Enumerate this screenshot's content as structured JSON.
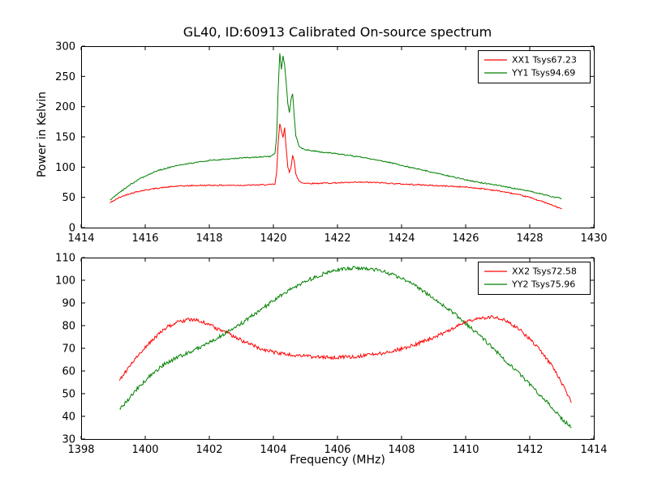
{
  "chart_data": [
    {
      "type": "line",
      "title": "GL40, ID:60913 Calibrated On-source spectrum",
      "xlabel": "",
      "ylabel": "Power in Kelvin",
      "xlim": [
        1414,
        1430
      ],
      "ylim": [
        0,
        300
      ],
      "xticks": [
        1414,
        1416,
        1418,
        1420,
        1422,
        1424,
        1426,
        1428,
        1430
      ],
      "yticks": [
        0,
        50,
        100,
        150,
        200,
        250,
        300
      ],
      "grid": false,
      "legend_position": "upper right",
      "noise_amplitude": 1.0,
      "series": [
        {
          "name": "XX1 Tsys67.23",
          "color": "#ff0000",
          "x": [
            1414.9,
            1415.0,
            1415.2,
            1415.5,
            1415.8,
            1416.1,
            1416.5,
            1417.0,
            1417.5,
            1418.0,
            1418.5,
            1419.0,
            1419.5,
            1419.9,
            1420.05,
            1420.1,
            1420.15,
            1420.2,
            1420.25,
            1420.3,
            1420.35,
            1420.4,
            1420.45,
            1420.5,
            1420.55,
            1420.6,
            1420.65,
            1420.7,
            1420.8,
            1420.9,
            1421.2,
            1421.6,
            1422.0,
            1422.4,
            1422.8,
            1423.2,
            1423.6,
            1424.0,
            1424.5,
            1425.0,
            1425.5,
            1426.0,
            1426.5,
            1427.0,
            1427.5,
            1428.0,
            1428.4,
            1428.7,
            1429.0
          ],
          "y": [
            41,
            44,
            50,
            56,
            60,
            63,
            66,
            68.5,
            69.5,
            70,
            70,
            70,
            70.5,
            71,
            72,
            90,
            140,
            172,
            160,
            150,
            165,
            130,
            100,
            92,
            100,
            120,
            110,
            88,
            77,
            74,
            73,
            73.5,
            74,
            74.5,
            75,
            74.5,
            73.5,
            72,
            71,
            69.5,
            68.5,
            67,
            64.5,
            61,
            56,
            50,
            43,
            37,
            31
          ]
        },
        {
          "name": "YY1 Tsys94.69",
          "color": "#008000",
          "x": [
            1414.9,
            1415.0,
            1415.2,
            1415.5,
            1415.8,
            1416.1,
            1416.5,
            1417.0,
            1417.5,
            1418.0,
            1418.5,
            1419.0,
            1419.5,
            1419.9,
            1420.05,
            1420.1,
            1420.15,
            1420.2,
            1420.25,
            1420.3,
            1420.35,
            1420.4,
            1420.45,
            1420.5,
            1420.55,
            1420.6,
            1420.65,
            1420.7,
            1420.8,
            1420.9,
            1421.2,
            1421.6,
            1422.0,
            1422.4,
            1422.8,
            1423.2,
            1423.6,
            1424.0,
            1424.5,
            1425.0,
            1425.5,
            1426.0,
            1426.5,
            1427.0,
            1427.5,
            1428.0,
            1428.4,
            1428.7,
            1429.0
          ],
          "y": [
            45,
            50,
            58,
            70,
            80,
            88,
            96,
            103,
            107,
            111,
            113,
            115,
            116.5,
            118,
            122,
            150,
            230,
            288,
            262,
            283,
            270,
            240,
            205,
            190,
            212,
            222,
            185,
            152,
            135,
            130,
            127,
            124.5,
            122,
            119,
            116,
            112,
            108,
            103,
            97,
            91,
            85,
            79,
            74,
            70,
            65,
            60,
            55,
            51,
            48
          ]
        }
      ]
    },
    {
      "type": "line",
      "title": "",
      "xlabel": "Frequency (MHz)",
      "ylabel": "",
      "xlim": [
        1398,
        1414
      ],
      "ylim": [
        30,
        110
      ],
      "xticks": [
        1398,
        1400,
        1402,
        1404,
        1406,
        1408,
        1410,
        1412,
        1414
      ],
      "yticks": [
        30,
        40,
        50,
        60,
        70,
        80,
        90,
        100,
        110
      ],
      "grid": false,
      "legend_position": "upper right",
      "noise_amplitude": 0.8,
      "series": [
        {
          "name": "XX2 Tsys72.58",
          "color": "#ff0000",
          "x": [
            1399.2,
            1399.5,
            1399.8,
            1400.1,
            1400.4,
            1400.7,
            1401.0,
            1401.3,
            1401.6,
            1401.9,
            1402.2,
            1402.6,
            1403.0,
            1403.4,
            1403.8,
            1404.2,
            1404.6,
            1405.0,
            1405.5,
            1406.0,
            1406.5,
            1407.0,
            1407.5,
            1408.0,
            1408.5,
            1409.0,
            1409.5,
            1410.0,
            1410.4,
            1410.8,
            1411.1,
            1411.4,
            1411.7,
            1412.0,
            1412.4,
            1412.8,
            1413.1,
            1413.3
          ],
          "y": [
            56,
            62,
            67,
            72,
            76,
            79.5,
            81.5,
            82.5,
            82.3,
            81,
            79,
            76.5,
            73.5,
            71,
            69,
            67.8,
            67,
            66.5,
            66,
            66,
            66.3,
            67,
            68,
            69.8,
            72,
            74.8,
            78,
            81.5,
            83.3,
            83.8,
            83,
            81,
            78,
            74,
            68,
            60,
            52,
            46
          ]
        },
        {
          "name": "YY2 Tsys75.96",
          "color": "#008000",
          "x": [
            1399.2,
            1399.5,
            1399.8,
            1400.2,
            1400.6,
            1401.0,
            1401.4,
            1401.8,
            1402.2,
            1402.6,
            1403.0,
            1403.4,
            1403.8,
            1404.2,
            1404.6,
            1405.0,
            1405.4,
            1405.8,
            1406.2,
            1406.6,
            1407.0,
            1407.4,
            1407.8,
            1408.2,
            1408.6,
            1409.0,
            1409.4,
            1409.8,
            1410.2,
            1410.6,
            1411.0,
            1411.4,
            1411.8,
            1412.2,
            1412.6,
            1413.0,
            1413.3
          ],
          "y": [
            43,
            48,
            53,
            58.5,
            63,
            66,
            68.5,
            71,
            74,
            77.5,
            81,
            85,
            89,
            93,
            96.5,
            99.5,
            102,
            104,
            105.2,
            105.5,
            105,
            104,
            102,
            99.5,
            96,
            92,
            88,
            83.5,
            78.5,
            73.5,
            68,
            62.5,
            57,
            51,
            45.5,
            39,
            35
          ]
        }
      ]
    }
  ]
}
